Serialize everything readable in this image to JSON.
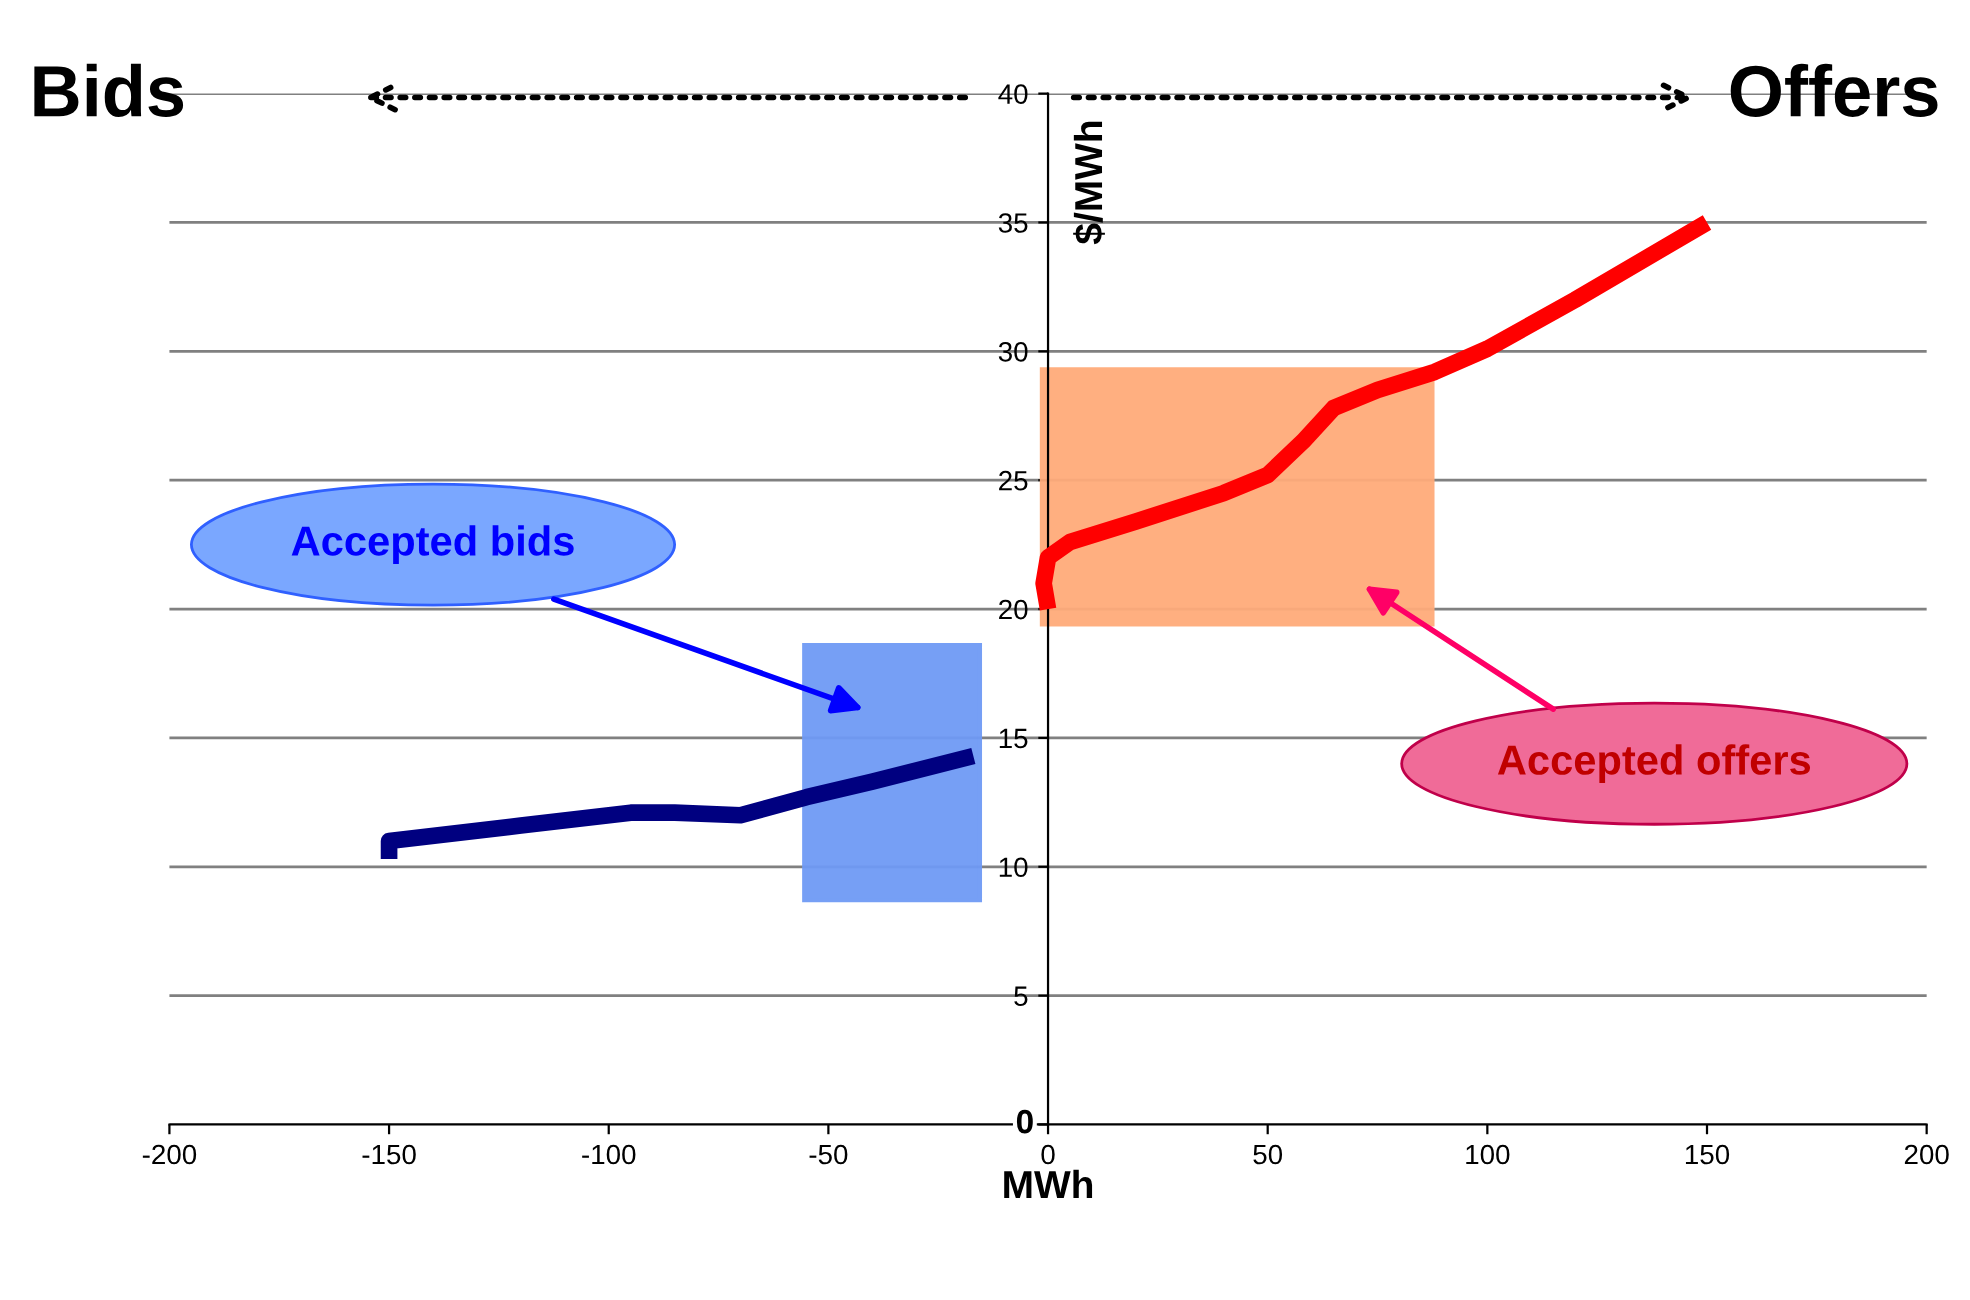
{
  "chart_data": {
    "type": "line",
    "xlabel": "MWh",
    "ylabel": "$/MWh",
    "xlim": [
      -200,
      200
    ],
    "xticks": [
      -200,
      -150,
      -100,
      -50,
      0,
      50,
      100,
      150,
      200
    ],
    "ylim": [
      0,
      40
    ],
    "yticks": [
      0,
      5,
      10,
      15,
      20,
      25,
      30,
      35,
      40
    ],
    "grid": "y",
    "legend": false,
    "marker": "none",
    "line_style": "solid",
    "series": [
      {
        "type": "area",
        "color": "#6f9af5",
        "x": [
          -55.5,
          -55.5,
          -15.5,
          -15.5,
          -55.5
        ],
        "values": [
          8.7,
          18.6,
          18.6,
          8.7,
          8.7
        ]
      },
      {
        "type": "area",
        "color": "#ffab7a",
        "x": [
          -1.4,
          -1.4,
          87.5,
          87.5,
          -1.4
        ],
        "values": [
          19.4,
          29.3,
          29.3,
          19.4,
          19.4
        ]
      },
      {
        "color": "#000080",
        "x": [
          -150,
          -150,
          -120,
          -95,
          -85,
          -70,
          -55,
          -40,
          -17
        ],
        "values": [
          10.3,
          11,
          11.6,
          12.1,
          12.1,
          12.0,
          12.7,
          13.3,
          14.3
        ]
      },
      {
        "color": "#ff0000",
        "x": [
          0,
          -1,
          0,
          5,
          20,
          40,
          50,
          58,
          65,
          75,
          88,
          100,
          120,
          150
        ],
        "values": [
          20,
          21,
          22,
          22.6,
          23.4,
          24.5,
          25.2,
          26.5,
          27.8,
          28.5,
          29.2,
          30.1,
          32,
          35
        ]
      }
    ],
    "annotations": [
      "Accepted bids",
      "Accepted offers",
      "Bids",
      "Offers"
    ]
  }
}
